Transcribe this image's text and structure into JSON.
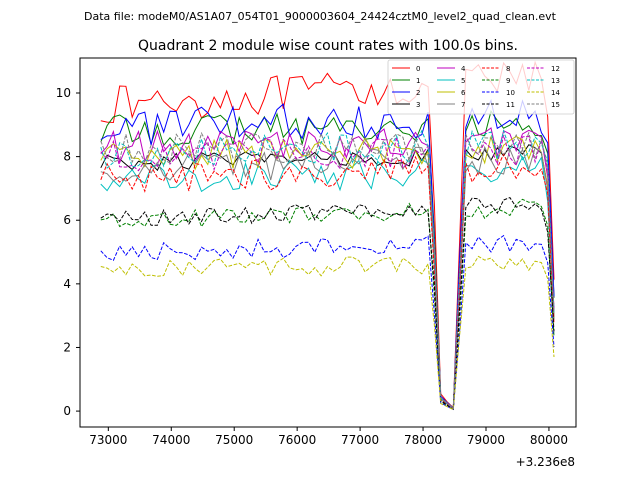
{
  "suptitle": "Data file: modeM0/AS1A07_054T01_9000003604_24424cztM0_level2_quad_clean.evt",
  "chart_data": {
    "type": "line",
    "title": "Quadrant 2 module wise count rates with 100.0s bins.",
    "xlabel": "",
    "ylabel": "",
    "x_offset_label": "+3.236e8",
    "xlim": [
      72550,
      80430
    ],
    "ylim": [
      -0.5,
      11.1
    ],
    "xticks": [
      73000,
      74000,
      75000,
      76000,
      77000,
      78000,
      79000,
      80000
    ],
    "xtick_labels": [
      "73000",
      "74000",
      "75000",
      "76000",
      "77000",
      "78000",
      "79000",
      "80000"
    ],
    "yticks": [
      0,
      2,
      4,
      6,
      8,
      10
    ],
    "ytick_labels": [
      "0",
      "2",
      "4",
      "6",
      "8",
      "10"
    ],
    "x_start": 72880,
    "x_step": 100,
    "n_points": 73,
    "legend_position": "upper-right",
    "dip": {
      "start_index": 53,
      "factors": [
        0.6,
        0.05,
        0.03,
        0.01,
        0.5,
        1.0
      ]
    },
    "end_drop_factors": [
      0.88,
      0.38
    ],
    "series": [
      {
        "name": "0",
        "color": "#ff0000",
        "dash": "solid",
        "level": 9.6,
        "amp": 0.6,
        "trend": 0.9
      },
      {
        "name": "1",
        "color": "#008000",
        "dash": "solid",
        "level": 8.8,
        "amp": 0.5,
        "trend": 0.2
      },
      {
        "name": "2",
        "color": "#0000ff",
        "dash": "solid",
        "level": 8.9,
        "amp": 0.6,
        "trend": 0.4
      },
      {
        "name": "3",
        "color": "#000000",
        "dash": "solid",
        "level": 7.8,
        "amp": 0.3,
        "trend": 0.3
      },
      {
        "name": "4",
        "color": "#bf00bf",
        "dash": "solid",
        "level": 8.3,
        "amp": 0.5,
        "trend": 0.2
      },
      {
        "name": "5",
        "color": "#00bfbf",
        "dash": "solid",
        "level": 7.3,
        "amp": 0.5,
        "trend": 0.3
      },
      {
        "name": "6",
        "color": "#bfbf00",
        "dash": "solid",
        "level": 8.0,
        "amp": 0.5,
        "trend": 0.2
      },
      {
        "name": "7",
        "color": "#808080",
        "dash": "solid",
        "level": 7.6,
        "amp": 0.5,
        "trend": 0.4
      },
      {
        "name": "8",
        "color": "#ff0000",
        "dash": "dashed",
        "level": 7.3,
        "amp": 0.5,
        "trend": 0.4
      },
      {
        "name": "9",
        "color": "#008000",
        "dash": "dashed",
        "level": 6.0,
        "amp": 0.3,
        "trend": 0.4
      },
      {
        "name": "10",
        "color": "#0000ff",
        "dash": "dashed",
        "level": 5.0,
        "amp": 0.3,
        "trend": 0.3
      },
      {
        "name": "11",
        "color": "#000000",
        "dash": "dashed",
        "level": 6.0,
        "amp": 0.3,
        "trend": 0.6
      },
      {
        "name": "12",
        "color": "#bf00bf",
        "dash": "dashed",
        "level": 8.0,
        "amp": 0.5,
        "trend": 0.2
      },
      {
        "name": "13",
        "color": "#00bfbf",
        "dash": "dashed",
        "level": 8.1,
        "amp": 0.5,
        "trend": 0.3
      },
      {
        "name": "14",
        "color": "#bfbf00",
        "dash": "dashed",
        "level": 4.4,
        "amp": 0.3,
        "trend": 0.3
      },
      {
        "name": "15",
        "color": "#808080",
        "dash": "dashed",
        "level": 8.2,
        "amp": 0.5,
        "trend": 0.2
      }
    ]
  }
}
